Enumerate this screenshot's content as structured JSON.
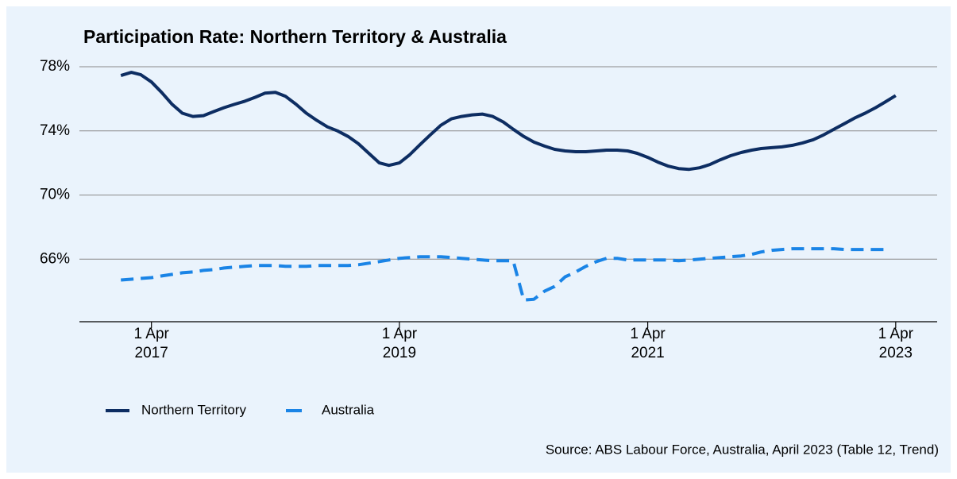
{
  "chart_data": {
    "type": "line",
    "title": "Participation Rate: Northern Territory & Australia",
    "source": "Source: ABS Labour Force, Australia, April 2023 (Table 12, Trend)",
    "x": [
      "2017-01-01",
      "2017-02-01",
      "2017-03-01",
      "2017-04-01",
      "2017-05-01",
      "2017-06-01",
      "2017-07-01",
      "2017-08-01",
      "2017-09-01",
      "2017-10-01",
      "2017-11-01",
      "2017-12-01",
      "2018-01-01",
      "2018-02-01",
      "2018-03-01",
      "2018-04-01",
      "2018-05-01",
      "2018-06-01",
      "2018-07-01",
      "2018-08-01",
      "2018-09-01",
      "2018-10-01",
      "2018-11-01",
      "2018-12-01",
      "2019-01-01",
      "2019-02-01",
      "2019-03-01",
      "2019-04-01",
      "2019-05-01",
      "2019-06-01",
      "2019-07-01",
      "2019-08-01",
      "2019-09-01",
      "2019-10-01",
      "2019-11-01",
      "2019-12-01",
      "2020-01-01",
      "2020-02-01",
      "2020-03-01",
      "2020-04-01",
      "2020-05-01",
      "2020-06-01",
      "2020-07-01",
      "2020-08-01",
      "2020-09-01",
      "2020-10-01",
      "2020-11-01",
      "2020-12-01",
      "2021-01-01",
      "2021-02-01",
      "2021-03-01",
      "2021-04-01",
      "2021-05-01",
      "2021-06-01",
      "2021-07-01",
      "2021-08-01",
      "2021-09-01",
      "2021-10-01",
      "2021-11-01",
      "2021-12-01",
      "2022-01-01",
      "2022-02-01",
      "2022-03-01",
      "2022-04-01",
      "2022-05-01",
      "2022-06-01",
      "2022-07-01",
      "2022-08-01",
      "2022-09-01",
      "2022-10-01",
      "2022-11-01",
      "2022-12-01",
      "2023-01-01",
      "2023-02-01",
      "2023-03-01",
      "2023-04-01"
    ],
    "series": [
      {
        "name": "Northern Territory",
        "color": "#0d2d62",
        "dash": false,
        "values": [
          77.45,
          77.65,
          77.5,
          77.05,
          76.4,
          75.65,
          75.1,
          74.9,
          74.95,
          75.2,
          75.45,
          75.65,
          75.85,
          76.1,
          76.35,
          76.4,
          76.15,
          75.65,
          75.1,
          74.65,
          74.25,
          74.0,
          73.65,
          73.2,
          72.6,
          72.0,
          71.85,
          72.0,
          72.5,
          73.15,
          73.75,
          74.35,
          74.75,
          74.9,
          75.0,
          75.05,
          74.9,
          74.55,
          74.1,
          73.65,
          73.3,
          73.05,
          72.85,
          72.75,
          72.7,
          72.7,
          72.75,
          72.8,
          72.8,
          72.75,
          72.6,
          72.35,
          72.05,
          71.8,
          71.65,
          71.6,
          71.7,
          71.9,
          72.2,
          72.45,
          72.65,
          72.8,
          72.9,
          72.95,
          73.0,
          73.1,
          73.25,
          73.45,
          73.75,
          74.1,
          74.45,
          74.8,
          75.1,
          75.45,
          75.8,
          76.2
        ]
      },
      {
        "name": "Australia",
        "color": "#1a84e6",
        "dash": true,
        "values": [
          64.7,
          64.75,
          64.8,
          64.85,
          64.95,
          65.05,
          65.15,
          65.2,
          65.3,
          65.35,
          65.45,
          65.5,
          65.55,
          65.6,
          65.6,
          65.6,
          65.55,
          65.55,
          65.55,
          65.6,
          65.6,
          65.6,
          65.6,
          65.65,
          65.75,
          65.85,
          65.95,
          66.05,
          66.1,
          66.15,
          66.15,
          66.15,
          66.1,
          66.05,
          66.0,
          65.95,
          65.9,
          65.9,
          65.9,
          63.45,
          63.5,
          64.0,
          64.3,
          64.9,
          65.2,
          65.55,
          65.85,
          66.05,
          66.05,
          65.95,
          65.95,
          65.95,
          65.95,
          65.95,
          65.9,
          65.95,
          66.0,
          66.05,
          66.1,
          66.15,
          66.2,
          66.3,
          66.45,
          66.55,
          66.6,
          66.65,
          66.65,
          66.65,
          66.65,
          66.65,
          66.6,
          66.6,
          66.6,
          66.6,
          66.6,
          null
        ]
      }
    ],
    "xlim": [
      "2016-09-01",
      "2023-08-01"
    ],
    "xticks": [
      {
        "value": "2017-04-01",
        "label": "1 Apr 2017"
      },
      {
        "value": "2019-04-01",
        "label": "1 Apr 2019"
      },
      {
        "value": "2021-04-01",
        "label": "1 Apr 2021"
      },
      {
        "value": "2023-04-01",
        "label": "1 Apr 2023"
      }
    ],
    "ylim": [
      62,
      78
    ],
    "yticks": [
      {
        "value": 66,
        "label": "66%"
      },
      {
        "value": 70,
        "label": "70%"
      },
      {
        "value": 74,
        "label": "74%"
      },
      {
        "value": 78,
        "label": "78%"
      }
    ],
    "grid": true,
    "legend": "bottom-left"
  }
}
